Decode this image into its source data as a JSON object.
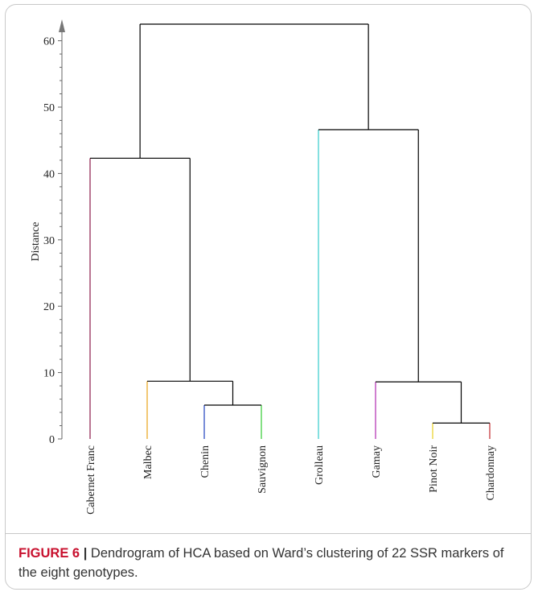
{
  "chart_data": {
    "type": "dendrogram",
    "ylabel": "Distance",
    "ylim": [
      0,
      62
    ],
    "yticks": [
      0,
      10,
      20,
      30,
      40,
      50,
      60
    ],
    "leaves": [
      {
        "label": "Cabernet Franc",
        "color": "#8b1a4a"
      },
      {
        "label": "Malbec",
        "color": "#e8a317"
      },
      {
        "label": "Chenin",
        "color": "#1f3fbf"
      },
      {
        "label": "Sauvignon",
        "color": "#33cc33"
      },
      {
        "label": "Grolleau",
        "color": "#33cccc"
      },
      {
        "label": "Gamay",
        "color": "#b02ab0"
      },
      {
        "label": "Pinot Noir",
        "color": "#e8d020"
      },
      {
        "label": "Chardonnay",
        "color": "#c0282d"
      }
    ],
    "merges": [
      {
        "id": "n1",
        "children": [
          "Pinot Noir",
          "Chardonnay"
        ],
        "height": 2.4
      },
      {
        "id": "n2",
        "children": [
          "Chenin",
          "Sauvignon"
        ],
        "height": 5.1
      },
      {
        "id": "n3",
        "children": [
          "Gamay",
          "n1"
        ],
        "height": 8.6
      },
      {
        "id": "n4",
        "children": [
          "Malbec",
          "n2"
        ],
        "height": 8.7
      },
      {
        "id": "n5",
        "children": [
          "Cabernet Franc",
          "n4"
        ],
        "height": 42.3
      },
      {
        "id": "n6",
        "children": [
          "Grolleau",
          "n3"
        ],
        "height": 46.6
      },
      {
        "id": "n7",
        "children": [
          "n5",
          "n6"
        ],
        "height": 62.5
      }
    ]
  },
  "caption": {
    "label": "FIGURE 6",
    "separator": "|",
    "text": " Dendrogram of HCA based on Ward’s clustering of 22 SSR markers of the eight genotypes."
  }
}
